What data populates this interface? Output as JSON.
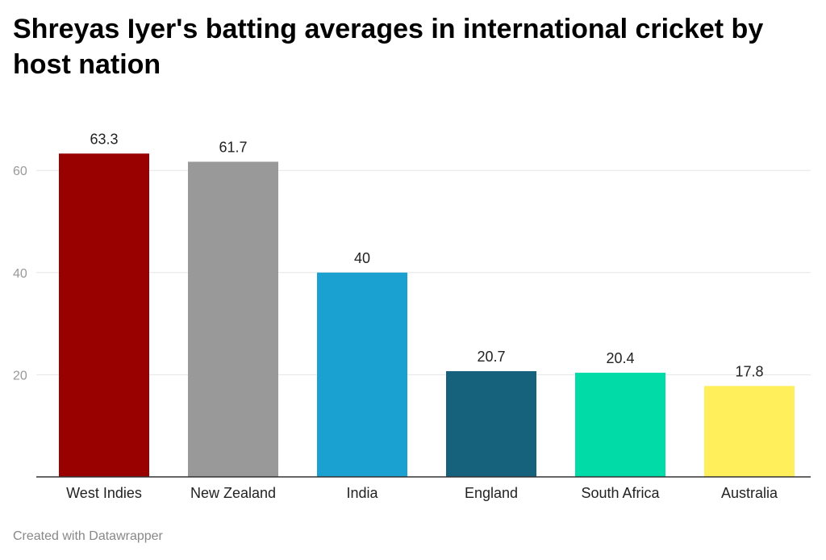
{
  "chart_data": {
    "type": "bar",
    "title": "Shreyas Iyer's batting averages in international cricket by host nation",
    "xlabel": "",
    "ylabel": "",
    "categories": [
      "West Indies",
      "New Zealand",
      "India",
      "England",
      "South Africa",
      "Australia"
    ],
    "values": [
      63.3,
      61.7,
      40,
      20.7,
      20.4,
      17.8
    ],
    "value_labels": [
      "63.3",
      "61.7",
      "40",
      "20.7",
      "20.4",
      "17.8"
    ],
    "colors": [
      "#990000",
      "#999999",
      "#1ba1d1",
      "#16627c",
      "#00dba8",
      "#ffef5a"
    ],
    "ylim": [
      0,
      70
    ],
    "yticks": [
      20,
      40,
      60
    ],
    "ytick_labels": [
      "20",
      "40",
      "60"
    ],
    "grid": true,
    "legend": "none"
  },
  "footer": {
    "credit": "Created with Datawrapper"
  },
  "colors": {
    "gridline": "#e5e5e5",
    "baseline": "#333333",
    "tick_label": "#999999",
    "category_label": "#222222",
    "value_label": "#222222"
  }
}
